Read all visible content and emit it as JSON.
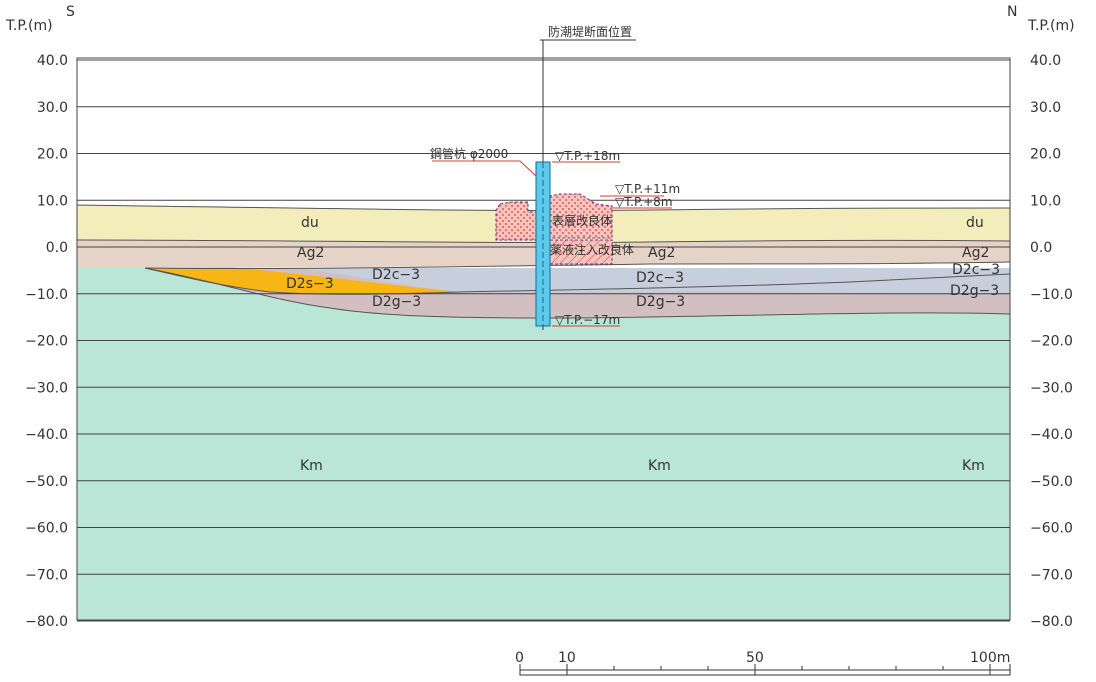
{
  "axis": {
    "unit": "T.P.(m)",
    "ticks": [
      "40.0",
      "30.0",
      "20.0",
      "10.0",
      "0.0",
      "−10.0",
      "−20.0",
      "−30.0",
      "−40.0",
      "−50.0",
      "−60.0",
      "−70.0",
      "−80.0"
    ],
    "south": "S",
    "north": "N"
  },
  "section_position_label": "防潮堤断面位置",
  "labels": {
    "du": "du",
    "ag2": "Ag2",
    "d2c3": "D2c−3",
    "d2g3": "D2g−3",
    "d2s3": "D2s−3",
    "km": "Km"
  },
  "annotations": {
    "pile": "鋼管杭 φ2000",
    "tp_18": "▽T.P.+18m",
    "tp_11": "▽T.P.+11m",
    "tp_8": "▽T.P.+8m",
    "tp_m17": "▽T.P.−17m",
    "surface_improvement": "表層改良体",
    "grout_improvement": "薬液注入改良体"
  },
  "scale_bar": {
    "labels": [
      "0",
      "10",
      "50",
      "100m"
    ]
  },
  "colors": {
    "du": "#f3ecbb",
    "ag2": "#e6d3c7",
    "d2c3": "#c6cfdb",
    "d2g3": "#d2bfc2",
    "d2s3": "#f7b616",
    "km": "#b9e6d6",
    "pile": "#5fc9ec",
    "improvement": "#f5c4bd"
  }
}
